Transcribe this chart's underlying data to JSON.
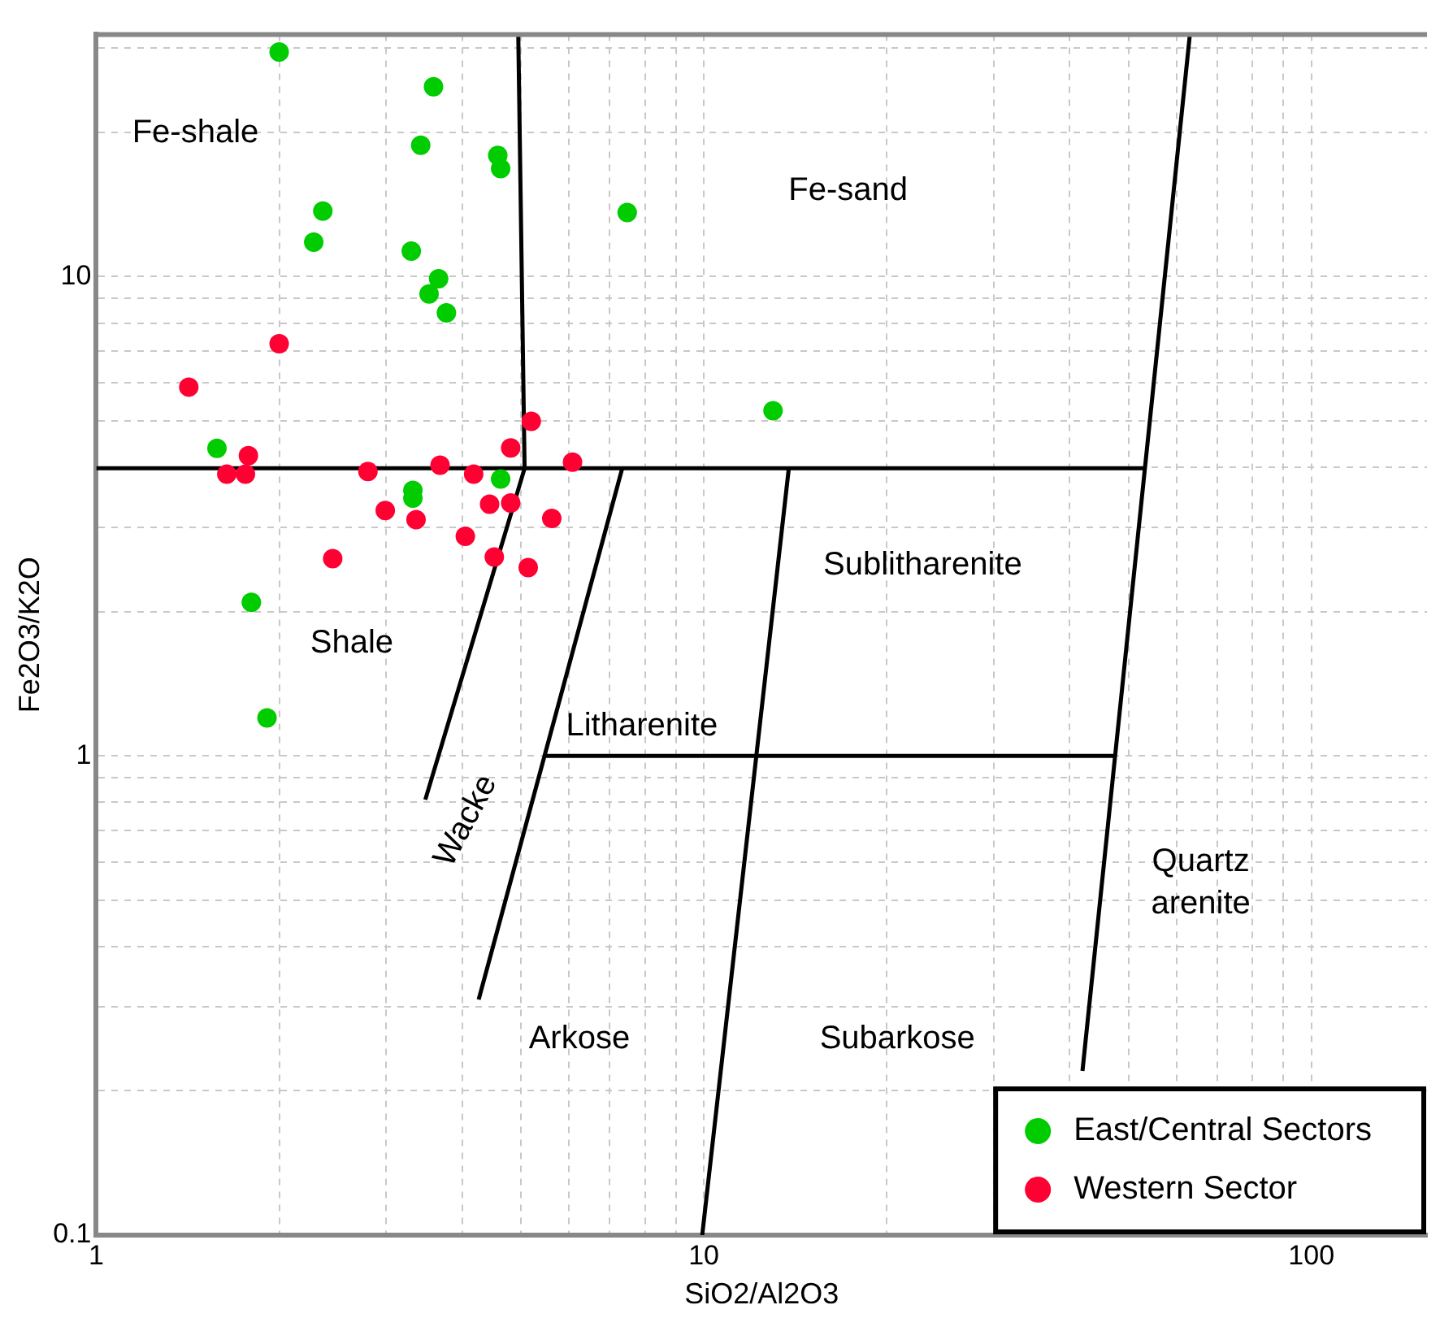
{
  "chart_data": {
    "type": "scatter",
    "xlabel": "SiO2/Al2O3",
    "ylabel": "Fe2O3/K2O",
    "log": "xy",
    "grid": true,
    "legend": "bottom right",
    "marker": "circle",
    "xlim": [
      1,
      155
    ],
    "ylim": [
      0.1,
      32
    ],
    "xticks": [
      1,
      {
        "value": 2,
        "label": null
      },
      {
        "value": 3,
        "label": null
      },
      {
        "value": 4,
        "label": null
      },
      {
        "value": 5,
        "label": null
      },
      {
        "value": 6,
        "label": null
      },
      {
        "value": 7,
        "label": null
      },
      {
        "value": 8,
        "label": null
      },
      {
        "value": 9,
        "label": null
      },
      10,
      {
        "value": 20,
        "label": null
      },
      {
        "value": 30,
        "label": null
      },
      {
        "value": 40,
        "label": null
      },
      {
        "value": 50,
        "label": null
      },
      {
        "value": 60,
        "label": null
      },
      {
        "value": 70,
        "label": null
      },
      {
        "value": 80,
        "label": null
      },
      {
        "value": 90,
        "label": null
      },
      100
    ],
    "yticks": [
      0.1,
      {
        "value": 0.2,
        "label": null
      },
      {
        "value": 0.3,
        "label": null
      },
      {
        "value": 0.4,
        "label": null
      },
      {
        "value": 0.5,
        "label": null
      },
      {
        "value": 0.6,
        "label": null
      },
      {
        "value": 0.7,
        "label": null
      },
      {
        "value": 0.8,
        "label": null
      },
      {
        "value": 0.9,
        "label": null
      },
      1,
      {
        "value": 2,
        "label": null
      },
      {
        "value": 3,
        "label": null
      },
      {
        "value": 4,
        "label": null
      },
      {
        "value": 5,
        "label": null
      },
      {
        "value": 6,
        "label": null
      },
      {
        "value": 7,
        "label": null
      },
      {
        "value": 8,
        "label": null
      },
      {
        "value": 9,
        "label": null
      },
      10,
      {
        "value": 20,
        "label": null
      },
      {
        "value": 30,
        "label": null
      }
    ],
    "series": [
      {
        "name": "East/Central Sectors",
        "color": "#00cc00",
        "x": [
          2.0,
          3.59,
          3.42,
          4.58,
          4.63,
          2.36,
          2.28,
          3.3,
          3.66,
          3.53,
          3.77,
          7.48,
          13.0,
          1.58,
          4.63,
          3.32,
          3.32,
          1.8,
          1.91
        ],
        "values": [
          29.4,
          24.9,
          18.8,
          17.9,
          16.8,
          13.7,
          11.8,
          11.3,
          9.9,
          9.2,
          8.4,
          13.6,
          5.25,
          4.38,
          3.78,
          3.58,
          3.45,
          2.09,
          1.2
        ]
      },
      {
        "name": "Western Sector",
        "color": "#ff0033",
        "x": [
          1.42,
          2.0,
          1.78,
          1.64,
          1.76,
          2.8,
          3.68,
          4.18,
          4.81,
          5.2,
          6.08,
          2.99,
          3.36,
          4.44,
          4.81,
          5.62,
          4.05,
          4.52,
          5.14,
          2.45
        ],
        "values": [
          5.88,
          7.24,
          4.23,
          3.87,
          3.87,
          3.92,
          4.04,
          3.87,
          4.39,
          4.99,
          4.1,
          3.25,
          3.11,
          3.35,
          3.37,
          3.13,
          2.87,
          2.6,
          2.47,
          2.58
        ]
      },
      {
        "type": "line",
        "color": "#000000",
        "marker": "none",
        "x": [
          1,
          53.3
        ],
        "values": [
          3.98,
          3.98
        ]
      },
      {
        "type": "line",
        "color": "#000000",
        "marker": "none",
        "x": [
          4.95,
          5.07,
          3.48
        ],
        "values": [
          32,
          3.98,
          0.81
        ]
      },
      {
        "type": "line",
        "color": "#000000",
        "marker": "none",
        "x": [
          7.34,
          4.26
        ],
        "values": [
          3.98,
          0.31
        ]
      },
      {
        "type": "line",
        "color": "#000000",
        "marker": "none",
        "x": [
          13.8,
          9.94
        ],
        "values": [
          3.98,
          0.1
        ]
      },
      {
        "type": "line",
        "color": "#000000",
        "marker": "none",
        "x": [
          63.1,
          42.0
        ],
        "values": [
          32,
          0.22
        ]
      },
      {
        "type": "line",
        "color": "#000000",
        "marker": "none",
        "x": [
          5.49,
          47.7
        ],
        "values": [
          1,
          1
        ]
      }
    ],
    "annotations": [
      "Fe-shale",
      "Fe-sand",
      "Sublitharenite",
      "Shale",
      "Litharenite",
      "Wacke",
      "Quartz\narenite",
      "Arkose",
      "Subarkose"
    ]
  }
}
